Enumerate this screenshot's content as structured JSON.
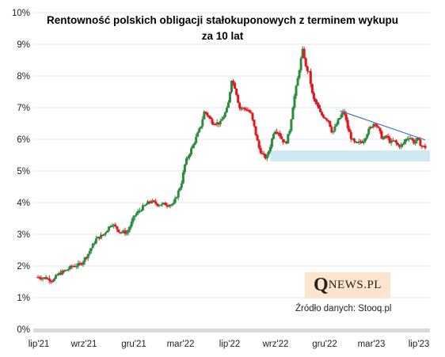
{
  "chart_data": {
    "type": "candlestick",
    "title_line1": "Rentowność polskich  obligacji  stałokuponowych  z terminem wykupu",
    "title_line2": "za 10 lat",
    "unit": "%",
    "ylim": [
      0,
      10
    ],
    "y_ticks": [
      "0%",
      "1%",
      "2%",
      "3%",
      "4%",
      "5%",
      "6%",
      "7%",
      "8%",
      "9%",
      "10%"
    ],
    "x_ticks": [
      "lip'21",
      "wrz'21",
      "gru'21",
      "mar'22",
      "lip'22",
      "wrz'22",
      "gru'22",
      "mar'23",
      "lip'23"
    ],
    "series_points": [
      [
        0,
        1.65
      ],
      [
        0.02,
        1.62
      ],
      [
        0.04,
        1.55
      ],
      [
        0.05,
        1.72
      ],
      [
        0.07,
        1.85
      ],
      [
        0.09,
        2.0
      ],
      [
        0.11,
        2.05
      ],
      [
        0.13,
        2.4
      ],
      [
        0.15,
        2.85
      ],
      [
        0.17,
        3.0
      ],
      [
        0.19,
        3.35
      ],
      [
        0.21,
        3.1
      ],
      [
        0.23,
        3.05
      ],
      [
        0.25,
        3.6
      ],
      [
        0.27,
        3.85
      ],
      [
        0.29,
        4.05
      ],
      [
        0.31,
        3.95
      ],
      [
        0.33,
        3.95
      ],
      [
        0.35,
        3.95
      ],
      [
        0.37,
        4.6
      ],
      [
        0.38,
        5.25
      ],
      [
        0.4,
        5.8
      ],
      [
        0.42,
        6.4
      ],
      [
        0.43,
        6.9
      ],
      [
        0.45,
        6.55
      ],
      [
        0.47,
        6.5
      ],
      [
        0.49,
        7.0
      ],
      [
        0.5,
        7.9
      ],
      [
        0.51,
        7.6
      ],
      [
        0.52,
        7.0
      ],
      [
        0.54,
        6.95
      ],
      [
        0.55,
        6.8
      ],
      [
        0.56,
        6.3
      ],
      [
        0.57,
        5.75
      ],
      [
        0.58,
        5.5
      ],
      [
        0.59,
        5.4
      ],
      [
        0.6,
        5.8
      ],
      [
        0.61,
        6.3
      ],
      [
        0.62,
        6.25
      ],
      [
        0.63,
        6.0
      ],
      [
        0.64,
        5.85
      ],
      [
        0.65,
        6.3
      ],
      [
        0.66,
        7.2
      ],
      [
        0.67,
        7.85
      ],
      [
        0.68,
        8.6
      ],
      [
        0.685,
        8.9
      ],
      [
        0.69,
        8.3
      ],
      [
        0.7,
        8.1
      ],
      [
        0.71,
        7.3
      ],
      [
        0.72,
        7.1
      ],
      [
        0.73,
        6.8
      ],
      [
        0.75,
        6.6
      ],
      [
        0.76,
        6.2
      ],
      [
        0.78,
        6.7
      ],
      [
        0.79,
        6.9
      ],
      [
        0.8,
        6.35
      ],
      [
        0.81,
        6.0
      ],
      [
        0.82,
        5.85
      ],
      [
        0.84,
        5.95
      ],
      [
        0.85,
        6.2
      ],
      [
        0.86,
        6.4
      ],
      [
        0.87,
        6.55
      ],
      [
        0.88,
        6.3
      ],
      [
        0.89,
        6.0
      ],
      [
        0.9,
        6.1
      ],
      [
        0.91,
        5.9
      ],
      [
        0.92,
        5.95
      ],
      [
        0.93,
        5.8
      ],
      [
        0.94,
        5.8
      ],
      [
        0.95,
        6.0
      ],
      [
        0.96,
        6.1
      ],
      [
        0.97,
        5.9
      ],
      [
        0.98,
        6.0
      ],
      [
        0.99,
        5.8
      ],
      [
        1.0,
        5.75
      ]
    ],
    "support_zone": [
      5.3,
      5.65
    ],
    "trendline": [
      [
        0.78,
        6.9
      ],
      [
        1.0,
        5.98
      ]
    ],
    "up_color": "#2e8b3e",
    "down_color": "#e8131a",
    "zone_color": "#cfe9f2",
    "trendline_color": "#4a78bf"
  },
  "logo": {
    "q": "Q",
    "rest": "NEWS.PL"
  },
  "source": "Źródło danych: Stooq.pl"
}
